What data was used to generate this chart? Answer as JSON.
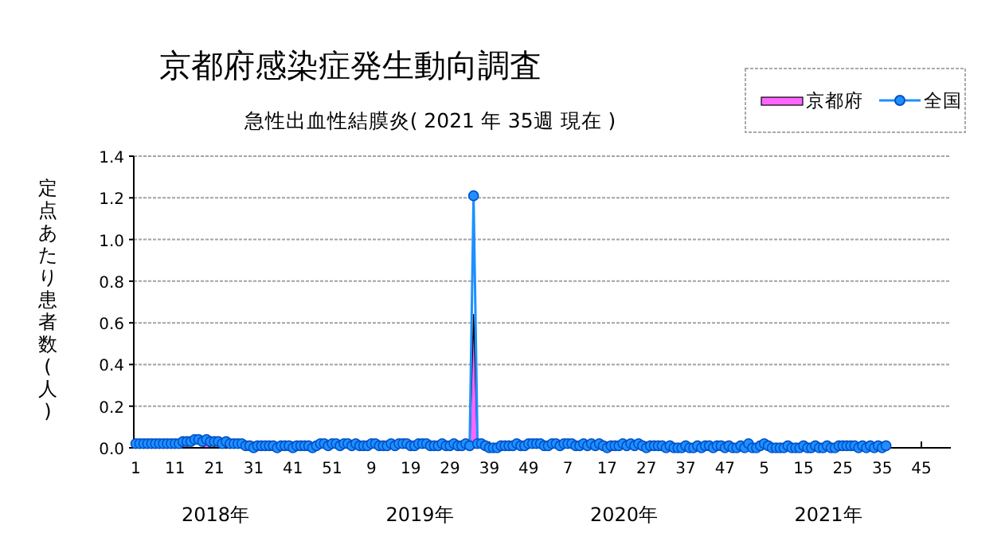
{
  "chart_data": {
    "type": "line",
    "title": "京都府感染症発生動向調査",
    "subtitle": "急性出血性結膜炎( 2021 年 35週 現在 )",
    "ylabel": "定点あたり患者数(人)",
    "annotations": [
      "2018年",
      "2019年",
      "2020年",
      "2021年"
    ],
    "categories": [
      "1",
      null,
      null,
      null,
      null,
      null,
      null,
      null,
      null,
      null,
      "11",
      null,
      null,
      null,
      null,
      null,
      null,
      null,
      null,
      null,
      "21",
      null,
      null,
      null,
      null,
      null,
      null,
      null,
      null,
      null,
      "31",
      null,
      null,
      null,
      null,
      null,
      null,
      null,
      null,
      null,
      "41",
      null,
      null,
      null,
      null,
      null,
      null,
      null,
      null,
      null,
      "51",
      null,
      null,
      null,
      null,
      null,
      null,
      null,
      null,
      null,
      "9",
      null,
      null,
      null,
      null,
      null,
      null,
      null,
      null,
      null,
      "19",
      null,
      null,
      null,
      null,
      null,
      null,
      null,
      null,
      null,
      "29",
      null,
      null,
      null,
      null,
      null,
      null,
      null,
      null,
      null,
      "39",
      null,
      null,
      null,
      null,
      null,
      null,
      null,
      null,
      null,
      "49",
      null,
      null,
      null,
      null,
      null,
      null,
      null,
      null,
      null,
      "7",
      null,
      null,
      null,
      null,
      null,
      null,
      null,
      null,
      null,
      "17",
      null,
      null,
      null,
      null,
      null,
      null,
      null,
      null,
      null,
      "27",
      null,
      null,
      null,
      null,
      null,
      null,
      null,
      null,
      null,
      "37",
      null,
      null,
      null,
      null,
      null,
      null,
      null,
      null,
      null,
      "47",
      null,
      null,
      null,
      null,
      null,
      null,
      null,
      null,
      null,
      "5",
      null,
      null,
      null,
      null,
      null,
      null,
      null,
      null,
      null,
      "15",
      null,
      null,
      null,
      null,
      null,
      null,
      null,
      null,
      null,
      "25",
      null,
      null,
      null,
      null,
      null,
      null,
      null,
      null,
      null,
      "35",
      null,
      null,
      null,
      null,
      null,
      null,
      null,
      null,
      null,
      "45",
      null,
      null,
      null,
      null,
      null,
      null,
      null
    ],
    "series": [
      {
        "name": "京都府",
        "type": "area",
        "color": "#ff66ff",
        "values": [
          0,
          0,
          0,
          0,
          0,
          0,
          0,
          0,
          0,
          0,
          0,
          0,
          0,
          0,
          0,
          0,
          0,
          0,
          0.02,
          0,
          0,
          0,
          0,
          0,
          0,
          0,
          0,
          0,
          0,
          0,
          0,
          0,
          0,
          0,
          0,
          0,
          0,
          0,
          0,
          0,
          0,
          0,
          0,
          0,
          0,
          0,
          0,
          0,
          0,
          0,
          0,
          0,
          0,
          0,
          0,
          0,
          0,
          0,
          0,
          0,
          0,
          0,
          0,
          0,
          0,
          0,
          0,
          0,
          0,
          0,
          0,
          0,
          0,
          0,
          0,
          0,
          0,
          0,
          0,
          0,
          0,
          0,
          0,
          0,
          0,
          0,
          0.64,
          0,
          0,
          0,
          0,
          0,
          0,
          0,
          0,
          0,
          0,
          0,
          0,
          0,
          0,
          0,
          0,
          0,
          0,
          0,
          0,
          0,
          0,
          0,
          0,
          0,
          0,
          0,
          0,
          0,
          0,
          0,
          0,
          0,
          0,
          0,
          0,
          0,
          0,
          0,
          0,
          0,
          0,
          0,
          0,
          0,
          0,
          0,
          0,
          0,
          0,
          0,
          0,
          0,
          0,
          0,
          0,
          0,
          0,
          0,
          0,
          0,
          0,
          0,
          0,
          0,
          0,
          0,
          0,
          0,
          0,
          0,
          0,
          0,
          0,
          0,
          0,
          0,
          0,
          0,
          0,
          0,
          0,
          0,
          0,
          0,
          0,
          0,
          0,
          0,
          0,
          0,
          0,
          0,
          0,
          0,
          0,
          0,
          0,
          0,
          0,
          0,
          0,
          0,
          0,
          0,
          null,
          null,
          null,
          null,
          null,
          null,
          null,
          null,
          null,
          null,
          null,
          null,
          null,
          null,
          null,
          null
        ]
      },
      {
        "name": "全国",
        "marker": "circle",
        "color": "#1e90ff",
        "values": [
          0.02,
          0.02,
          0.02,
          0.02,
          0.02,
          0.02,
          0.02,
          0.02,
          0.02,
          0.02,
          0.02,
          0.02,
          0.03,
          0.03,
          0.03,
          0.04,
          0.04,
          0.03,
          0.04,
          0.03,
          0.03,
          0.03,
          0.02,
          0.03,
          0.02,
          0.02,
          0.02,
          0.02,
          0.01,
          0.01,
          0,
          0.01,
          0.01,
          0.01,
          0.01,
          0.01,
          0,
          0.01,
          0.01,
          0.01,
          0,
          0.01,
          0.01,
          0.01,
          0.01,
          0,
          0.01,
          0.02,
          0.02,
          0.01,
          0.02,
          0.02,
          0.01,
          0.02,
          0.02,
          0.01,
          0.02,
          0.01,
          0.01,
          0.01,
          0.02,
          0.02,
          0.01,
          0.01,
          0.01,
          0.02,
          0.01,
          0.02,
          0.02,
          0.02,
          0.01,
          0.01,
          0.02,
          0.02,
          0.02,
          0.01,
          0.01,
          0.01,
          0.02,
          0.01,
          0.01,
          0.02,
          0.01,
          0.01,
          0.02,
          0.01,
          1.21,
          0.02,
          0.02,
          0.01,
          0,
          0,
          0,
          0.01,
          0.01,
          0.01,
          0.01,
          0.02,
          0.01,
          0.01,
          0.02,
          0.02,
          0.02,
          0.02,
          0.01,
          0.01,
          0.02,
          0.02,
          0.01,
          0.02,
          0.02,
          0.02,
          0.01,
          0.01,
          0.02,
          0.01,
          0.02,
          0.01,
          0.02,
          0.01,
          0,
          0.01,
          0.01,
          0.01,
          0.02,
          0.01,
          0.02,
          0.01,
          0.02,
          0.01,
          0,
          0.01,
          0.01,
          0.01,
          0.01,
          0,
          0.01,
          0,
          0,
          0,
          0.01,
          0,
          0,
          0.01,
          0,
          0.01,
          0.01,
          0,
          0.01,
          0.01,
          0,
          0.01,
          0,
          0,
          0.01,
          0,
          0.02,
          0,
          0,
          0.01,
          0.02,
          0.01,
          0,
          0,
          0,
          0,
          0.01,
          0,
          0,
          0,
          0.01,
          0,
          0,
          0.01,
          0,
          0,
          0.01,
          0,
          0,
          0.01,
          0.01,
          0.01,
          0.01,
          0.01,
          0,
          0.01,
          0,
          0.01,
          0,
          0.01,
          0,
          0.01,
          null,
          null,
          null,
          null,
          null,
          null,
          null,
          null,
          null,
          null,
          null,
          null,
          null,
          null,
          null,
          null
        ]
      }
    ],
    "ylim": [
      0,
      1.4
    ],
    "yticks": [
      {
        "value": 0,
        "label": "0.0"
      },
      {
        "value": 0.2,
        "label": "0.2"
      },
      {
        "value": 0.4,
        "label": "0.4"
      },
      {
        "value": 0.6,
        "label": "0.6"
      },
      {
        "value": 0.8,
        "label": "0.8"
      },
      {
        "value": 1,
        "label": "1.0"
      },
      {
        "value": 1.2,
        "label": "1.2"
      },
      {
        "value": 1.4,
        "label": "1.4"
      }
    ],
    "grid": "y",
    "legend": "top right",
    "line_style": "solid"
  }
}
